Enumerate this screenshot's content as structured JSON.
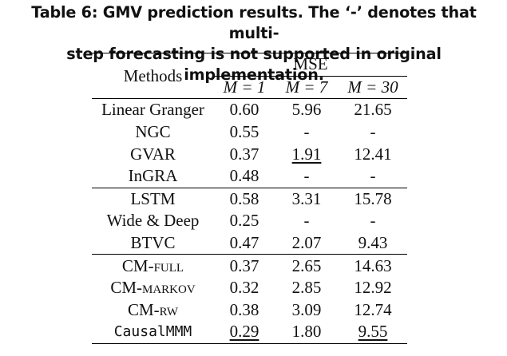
{
  "caption": {
    "line1": "Table 6: GMV prediction results. The ‘-’ denotes that multi-",
    "line2": "step forecasting is not supported in original implementation."
  },
  "table": {
    "methods_header": "Methods",
    "metric_header": "MSE",
    "m_headers": [
      "M = 1",
      "M = 7",
      "M = 30"
    ],
    "groups": [
      [
        {
          "method": "Linear Granger",
          "values": [
            "0.60",
            "5.96",
            "21.65"
          ]
        },
        {
          "method": "NGC",
          "values": [
            "0.55",
            "-",
            "-"
          ]
        },
        {
          "method": "GVAR",
          "values": [
            "0.37",
            "1.91",
            "12.41"
          ]
        },
        {
          "method": "InGRA",
          "values": [
            "0.48",
            "-",
            "-"
          ]
        }
      ],
      [
        {
          "method": "LSTM",
          "values": [
            "0.58",
            "3.31",
            "15.78"
          ]
        },
        {
          "method": "Wide & Deep",
          "values": [
            "0.25",
            "-",
            "-"
          ]
        },
        {
          "method": "BTVC",
          "values": [
            "0.47",
            "2.07",
            "9.43"
          ]
        }
      ],
      [
        {
          "method_prefix": "CM-",
          "method_suffix": "full",
          "values": [
            "0.37",
            "2.65",
            "14.63"
          ]
        },
        {
          "method_prefix": "CM-",
          "method_suffix": "markov",
          "values": [
            "0.32",
            "2.85",
            "12.92"
          ]
        },
        {
          "method_prefix": "CM-",
          "method_suffix": "rw",
          "values": [
            "0.38",
            "3.09",
            "12.74"
          ]
        },
        {
          "method": "CausalMMM",
          "values": [
            "0.29",
            "1.80",
            "9.55"
          ]
        }
      ]
    ]
  }
}
